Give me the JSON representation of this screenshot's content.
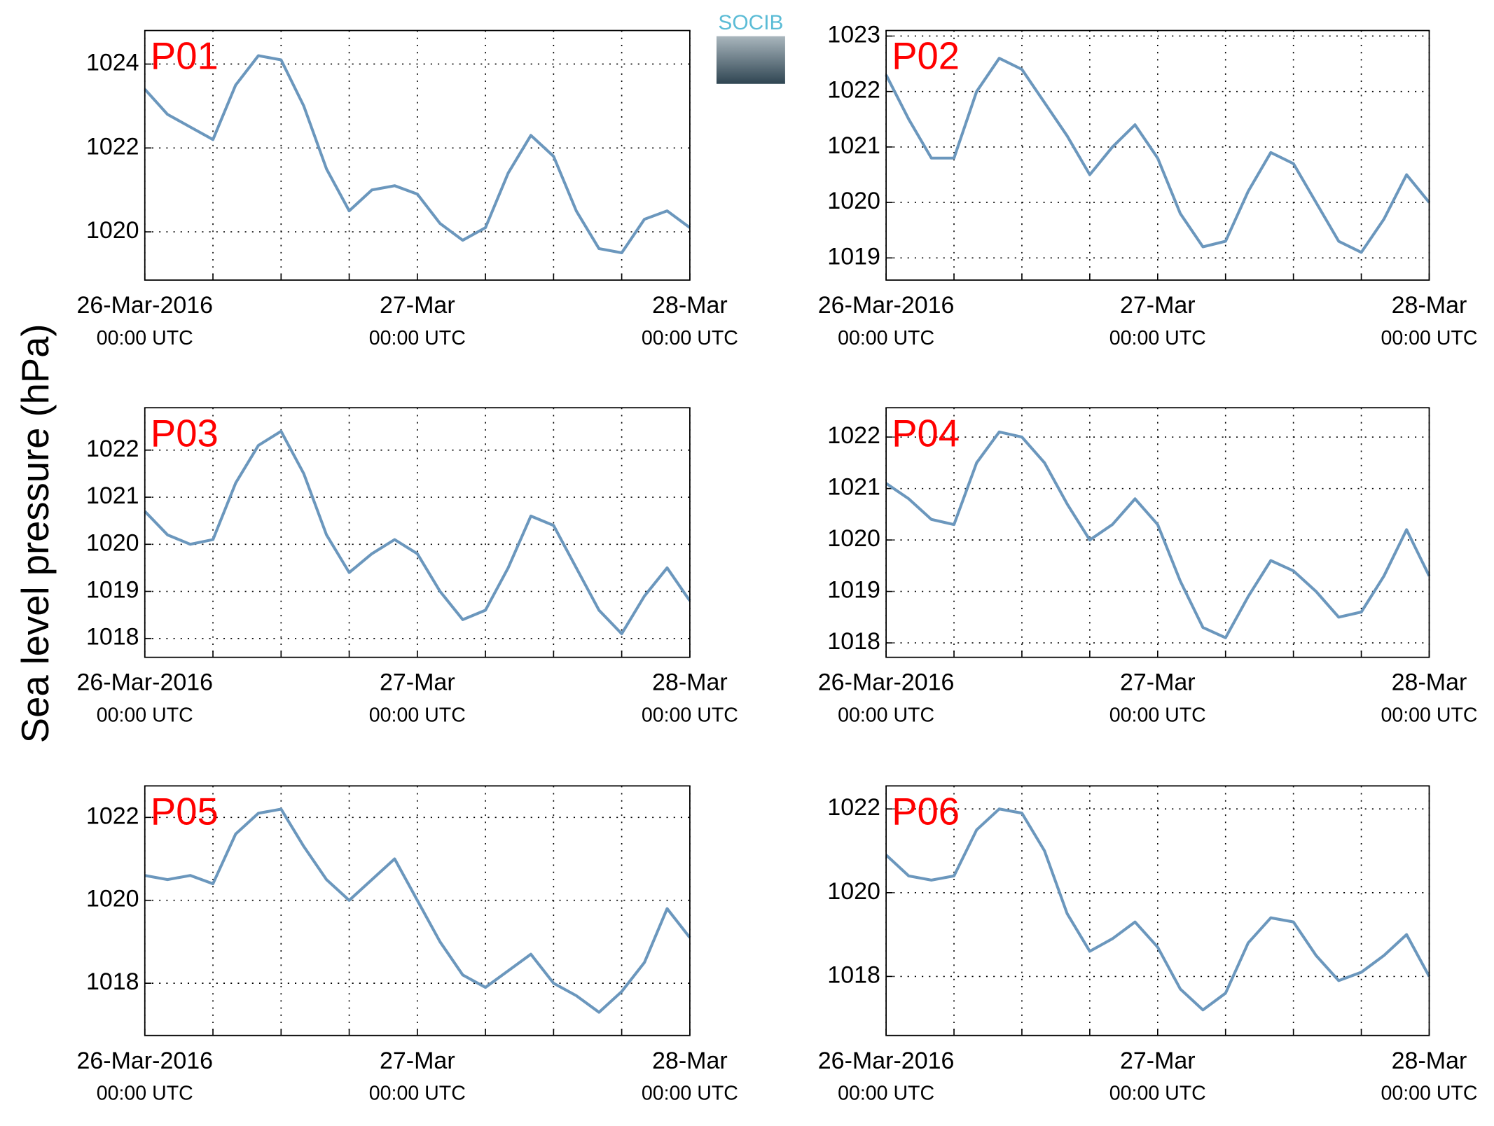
{
  "ylabel": "Sea level pressure (hPa)",
  "logo": "SOCIB",
  "chart_data": [
    {
      "type": "line",
      "title": "P01",
      "color": "#6b97bd",
      "grid": true,
      "x": [
        0,
        2,
        4,
        6,
        8,
        10,
        12,
        14,
        16,
        18,
        20,
        22,
        24,
        26,
        28,
        30,
        32,
        34,
        36,
        38,
        40,
        42,
        44,
        46,
        48
      ],
      "values": [
        1023.4,
        1022.8,
        1022.5,
        1022.2,
        1023.5,
        1024.2,
        1024.1,
        1023.0,
        1021.5,
        1020.5,
        1021.0,
        1021.1,
        1020.9,
        1020.2,
        1019.8,
        1020.1,
        1021.4,
        1022.3,
        1021.8,
        1020.5,
        1019.6,
        1019.5,
        1020.3,
        1020.5,
        1020.1
      ],
      "xlim": [
        0,
        48
      ],
      "xticks": [
        {
          "value": 0,
          "label": [
            "26-Mar-2016",
            "00:00 UTC"
          ]
        },
        {
          "value": 24,
          "label": [
            "27-Mar",
            "00:00 UTC"
          ]
        },
        {
          "value": 48,
          "label": [
            "28-Mar",
            "00:00 UTC"
          ]
        }
      ],
      "xminorticks": [
        6,
        12,
        18,
        30,
        36,
        42
      ],
      "ylim": [
        1018.85,
        1024.8
      ],
      "yticks": [
        1020,
        1022,
        1024
      ]
    },
    {
      "type": "line",
      "title": "P02",
      "color": "#6b97bd",
      "grid": true,
      "x": [
        0,
        2,
        4,
        6,
        8,
        10,
        12,
        14,
        16,
        18,
        20,
        22,
        24,
        26,
        28,
        30,
        32,
        34,
        36,
        38,
        40,
        42,
        44,
        46,
        48
      ],
      "values": [
        1022.3,
        1021.5,
        1020.8,
        1020.8,
        1022.0,
        1022.6,
        1022.4,
        1021.8,
        1021.2,
        1020.5,
        1021.0,
        1021.4,
        1020.8,
        1019.8,
        1019.2,
        1019.3,
        1020.2,
        1020.9,
        1020.7,
        1020.0,
        1019.3,
        1019.1,
        1019.7,
        1020.5,
        1020.0
      ],
      "xlim": [
        0,
        48
      ],
      "xticks": [
        {
          "value": 0,
          "label": [
            "26-Mar-2016",
            "00:00 UTC"
          ]
        },
        {
          "value": 24,
          "label": [
            "27-Mar",
            "00:00 UTC"
          ]
        },
        {
          "value": 48,
          "label": [
            "28-Mar",
            "00:00 UTC"
          ]
        }
      ],
      "xminorticks": [
        6,
        12,
        18,
        30,
        36,
        42
      ],
      "ylim": [
        1018.6,
        1023.1
      ],
      "yticks": [
        1019,
        1020,
        1021,
        1022,
        1023
      ]
    },
    {
      "type": "line",
      "title": "P03",
      "color": "#6b97bd",
      "grid": true,
      "x": [
        0,
        2,
        4,
        6,
        8,
        10,
        12,
        14,
        16,
        18,
        20,
        22,
        24,
        26,
        28,
        30,
        32,
        34,
        36,
        38,
        40,
        42,
        44,
        46,
        48
      ],
      "values": [
        1020.7,
        1020.2,
        1020.0,
        1020.1,
        1021.3,
        1022.1,
        1022.4,
        1021.5,
        1020.2,
        1019.4,
        1019.8,
        1020.1,
        1019.8,
        1019.0,
        1018.4,
        1018.6,
        1019.5,
        1020.6,
        1020.4,
        1019.5,
        1018.6,
        1018.1,
        1018.9,
        1019.5,
        1018.8
      ],
      "xlim": [
        0,
        48
      ],
      "xticks": [
        {
          "value": 0,
          "label": [
            "26-Mar-2016",
            "00:00 UTC"
          ]
        },
        {
          "value": 24,
          "label": [
            "27-Mar",
            "00:00 UTC"
          ]
        },
        {
          "value": 48,
          "label": [
            "28-Mar",
            "00:00 UTC"
          ]
        }
      ],
      "xminorticks": [
        6,
        12,
        18,
        30,
        36,
        42
      ],
      "ylim": [
        1017.6,
        1022.9
      ],
      "yticks": [
        1018,
        1019,
        1020,
        1021,
        1022
      ]
    },
    {
      "type": "line",
      "title": "P04",
      "color": "#6b97bd",
      "grid": true,
      "x": [
        0,
        2,
        4,
        6,
        8,
        10,
        12,
        14,
        16,
        18,
        20,
        22,
        24,
        26,
        28,
        30,
        32,
        34,
        36,
        38,
        40,
        42,
        44,
        46,
        48
      ],
      "values": [
        1021.1,
        1020.8,
        1020.4,
        1020.3,
        1021.5,
        1022.1,
        1022.0,
        1021.5,
        1020.7,
        1020.0,
        1020.3,
        1020.8,
        1020.3,
        1019.2,
        1018.3,
        1018.1,
        1018.9,
        1019.6,
        1019.4,
        1019.0,
        1018.5,
        1018.6,
        1019.3,
        1020.2,
        1019.3
      ],
      "xlim": [
        0,
        48
      ],
      "xticks": [
        {
          "value": 0,
          "label": [
            "26-Mar-2016",
            "00:00 UTC"
          ]
        },
        {
          "value": 24,
          "label": [
            "27-Mar",
            "00:00 UTC"
          ]
        },
        {
          "value": 48,
          "label": [
            "28-Mar",
            "00:00 UTC"
          ]
        }
      ],
      "xminorticks": [
        6,
        12,
        18,
        30,
        36,
        42
      ],
      "ylim": [
        1017.72,
        1022.57
      ],
      "yticks": [
        1018,
        1019,
        1020,
        1021,
        1022
      ]
    },
    {
      "type": "line",
      "title": "P05",
      "color": "#6b97bd",
      "grid": true,
      "x": [
        0,
        2,
        4,
        6,
        8,
        10,
        12,
        14,
        16,
        18,
        20,
        22,
        24,
        26,
        28,
        30,
        32,
        34,
        36,
        38,
        40,
        42,
        44,
        46,
        48
      ],
      "values": [
        1020.6,
        1020.5,
        1020.6,
        1020.4,
        1021.6,
        1022.1,
        1022.2,
        1021.3,
        1020.5,
        1020.0,
        1020.5,
        1021.0,
        1020.0,
        1019.0,
        1018.2,
        1017.9,
        1018.3,
        1018.7,
        1018.0,
        1017.7,
        1017.3,
        1017.8,
        1018.5,
        1019.8,
        1019.1
      ],
      "xlim": [
        0,
        48
      ],
      "xticks": [
        {
          "value": 0,
          "label": [
            "26-Mar-2016",
            "00:00 UTC"
          ]
        },
        {
          "value": 24,
          "label": [
            "27-Mar",
            "00:00 UTC"
          ]
        },
        {
          "value": 48,
          "label": [
            "28-Mar",
            "00:00 UTC"
          ]
        }
      ],
      "xminorticks": [
        6,
        12,
        18,
        30,
        36,
        42
      ],
      "ylim": [
        1016.74,
        1022.76
      ],
      "yticks": [
        1018,
        1020,
        1022
      ]
    },
    {
      "type": "line",
      "title": "P06",
      "color": "#6b97bd",
      "grid": true,
      "x": [
        0,
        2,
        4,
        6,
        8,
        10,
        12,
        14,
        16,
        18,
        20,
        22,
        24,
        26,
        28,
        30,
        32,
        34,
        36,
        38,
        40,
        42,
        44,
        46,
        48
      ],
      "values": [
        1020.9,
        1020.4,
        1020.3,
        1020.4,
        1021.5,
        1022.0,
        1021.9,
        1021.0,
        1019.5,
        1018.6,
        1018.9,
        1019.3,
        1018.7,
        1017.7,
        1017.2,
        1017.6,
        1018.8,
        1019.4,
        1019.3,
        1018.5,
        1017.9,
        1018.1,
        1018.5,
        1019.0,
        1018.0
      ],
      "xlim": [
        0,
        48
      ],
      "xticks": [
        {
          "value": 0,
          "label": [
            "26-Mar-2016",
            "00:00 UTC"
          ]
        },
        {
          "value": 24,
          "label": [
            "27-Mar",
            "00:00 UTC"
          ]
        },
        {
          "value": 48,
          "label": [
            "28-Mar",
            "00:00 UTC"
          ]
        }
      ],
      "xminorticks": [
        6,
        12,
        18,
        30,
        36,
        42
      ],
      "ylim": [
        1016.59,
        1022.55
      ],
      "yticks": [
        1018,
        1020,
        1022
      ]
    }
  ]
}
